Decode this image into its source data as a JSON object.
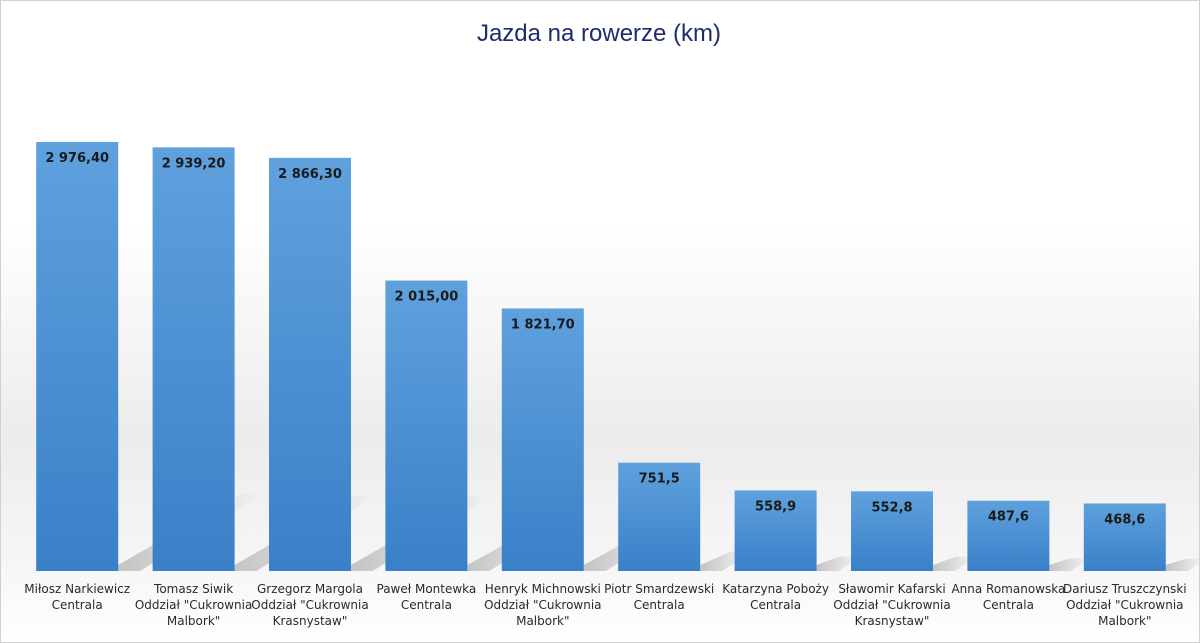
{
  "chart_data": {
    "type": "bar",
    "title": "Jazda na rowerze (km)",
    "xlabel": "",
    "ylabel": "",
    "ylim": [
      0,
      3200
    ],
    "grid": false,
    "legend": "none",
    "bar_color": "#4a90d4",
    "bar_color_light": "#5ea1dd",
    "bar_color_dark": "#3a80c8",
    "categories": [
      [
        "Miłosz Narkiewicz",
        "Centrala"
      ],
      [
        "Tomasz Siwik",
        "Oddział \"Cukrownia",
        "Malbork\""
      ],
      [
        "Grzegorz Margola",
        "Oddział \"Cukrownia",
        "Krasnystaw\""
      ],
      [
        "Paweł Montewka",
        "Centrala"
      ],
      [
        "Henryk Michnowski",
        "Oddział \"Cukrownia",
        "Malbork\""
      ],
      [
        "Piotr Smardzewski",
        "Centrala"
      ],
      [
        "Katarzyna Poboży",
        "Centrala"
      ],
      [
        "Sławomir Kafarski",
        "Oddział \"Cukrownia",
        "Krasnystaw\""
      ],
      [
        "Anna Romanowska",
        "Centrala"
      ],
      [
        "Dariusz Truszczynski",
        "Oddział \"Cukrownia",
        "Malbork\""
      ]
    ],
    "values": [
      2976.4,
      2939.2,
      2866.3,
      2015.0,
      1821.7,
      751.5,
      558.9,
      552.8,
      487.6,
      468.6
    ],
    "data_labels": [
      "2 976,40",
      "2 939,20",
      "2 866,30",
      "2 015,00",
      "1 821,70",
      "751,5",
      "558,9",
      "552,8",
      "487,6",
      "468,6"
    ]
  }
}
